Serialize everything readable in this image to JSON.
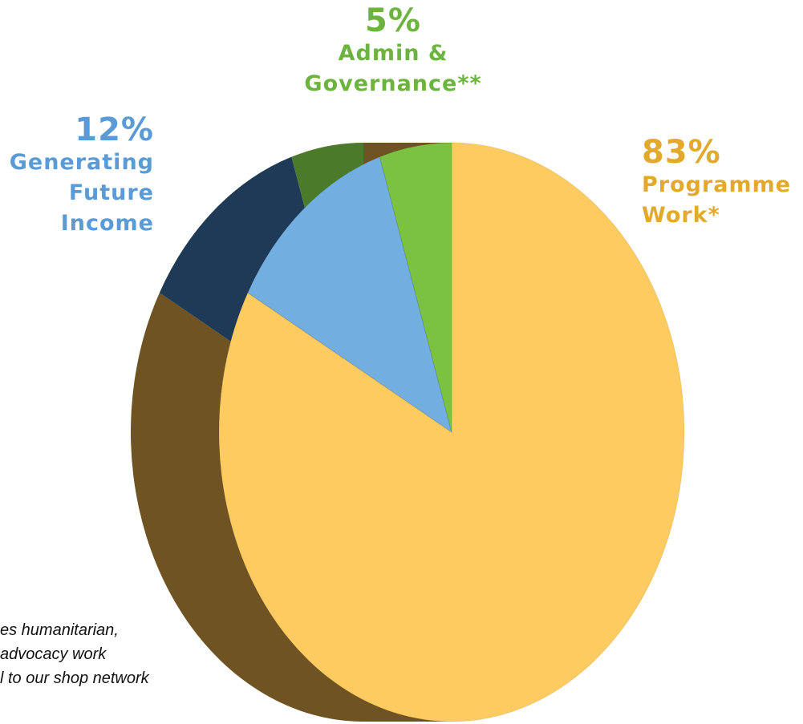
{
  "chart_data": {
    "type": "pie",
    "categories": [
      "Programme Work*",
      "Generating Future Income",
      "Admin & Governance**"
    ],
    "values": [
      83,
      12,
      5
    ],
    "value_labels": [
      "83%",
      "12%",
      "5%"
    ],
    "colors": [
      "#fdcb5f",
      "#72aee0",
      "#7bc142"
    ],
    "side_colors": [
      "#6f5322",
      "#1f3a56",
      "#4a7a2a"
    ],
    "label_colors": [
      "#e3a92d",
      "#5b9bd5",
      "#6db33f"
    ],
    "notes": [
      "es humanitarian,",
      "advocacy work",
      "l to our shop network"
    ]
  }
}
